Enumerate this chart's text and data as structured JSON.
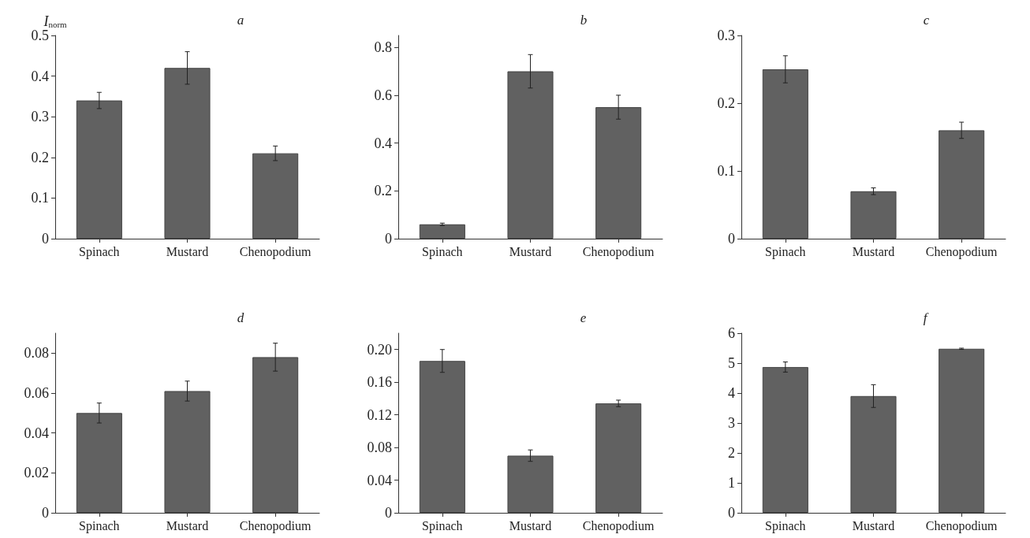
{
  "chart_data": [
    {
      "type": "bar",
      "title": "a",
      "ylabel": "I$_{norm}$",
      "categories": [
        "Spinach",
        "Mustard",
        "Chenopodium"
      ],
      "color": "#616161",
      "values": [
        0.34,
        0.42,
        0.21
      ],
      "errors": [
        0.02,
        0.04,
        0.018
      ],
      "ylim": [
        0,
        0.5
      ],
      "yticks": [
        0,
        0.1,
        0.2,
        0.3,
        0.4,
        0.5
      ]
    },
    {
      "type": "bar",
      "title": "b",
      "categories": [
        "Spinach",
        "Mustard",
        "Chenopodium"
      ],
      "color": "#616161",
      "values": [
        0.06,
        0.7,
        0.55
      ],
      "errors": [
        0.005,
        0.07,
        0.05
      ],
      "ylim": [
        0,
        0.85
      ],
      "yticks": [
        0,
        0.2,
        0.4,
        0.6,
        0.8
      ]
    },
    {
      "type": "bar",
      "title": "c",
      "categories": [
        "Spinach",
        "Mustard",
        "Chenopodium"
      ],
      "color": "#616161",
      "values": [
        0.25,
        0.07,
        0.16
      ],
      "errors": [
        0.02,
        0.005,
        0.012
      ],
      "ylim": [
        0,
        0.3
      ],
      "yticks": [
        0,
        0.1,
        0.2,
        0.3
      ]
    },
    {
      "type": "bar",
      "title": "d",
      "categories": [
        "Spinach",
        "Mustard",
        "Chenopodium"
      ],
      "color": "#616161",
      "values": [
        0.05,
        0.061,
        0.078
      ],
      "errors": [
        0.005,
        0.005,
        0.007
      ],
      "ylim": [
        0,
        0.09
      ],
      "yticks": [
        0,
        0.02,
        0.04,
        0.06,
        0.08
      ]
    },
    {
      "type": "bar",
      "title": "e",
      "categories": [
        "Spinach",
        "Mustard",
        "Chenopodium"
      ],
      "color": "#616161",
      "values": [
        0.186,
        0.07,
        0.134
      ],
      "errors": [
        0.014,
        0.007,
        0.004
      ],
      "ylim": [
        0,
        0.22
      ],
      "yticks": [
        0,
        0.04,
        0.08,
        0.12,
        0.16,
        {
          "value": 0.2,
          "label": "0.20"
        }
      ]
    },
    {
      "type": "bar",
      "title": "f",
      "categories": [
        "Spinach",
        "Mustard",
        "Chenopodium"
      ],
      "color": "#616161",
      "values": [
        4.87,
        3.9,
        5.48
      ],
      "errors": [
        0.17,
        0.38,
        0.02
      ],
      "ylim": [
        0,
        6
      ],
      "yticks": [
        0,
        1,
        2,
        3,
        4,
        5,
        6
      ]
    }
  ]
}
